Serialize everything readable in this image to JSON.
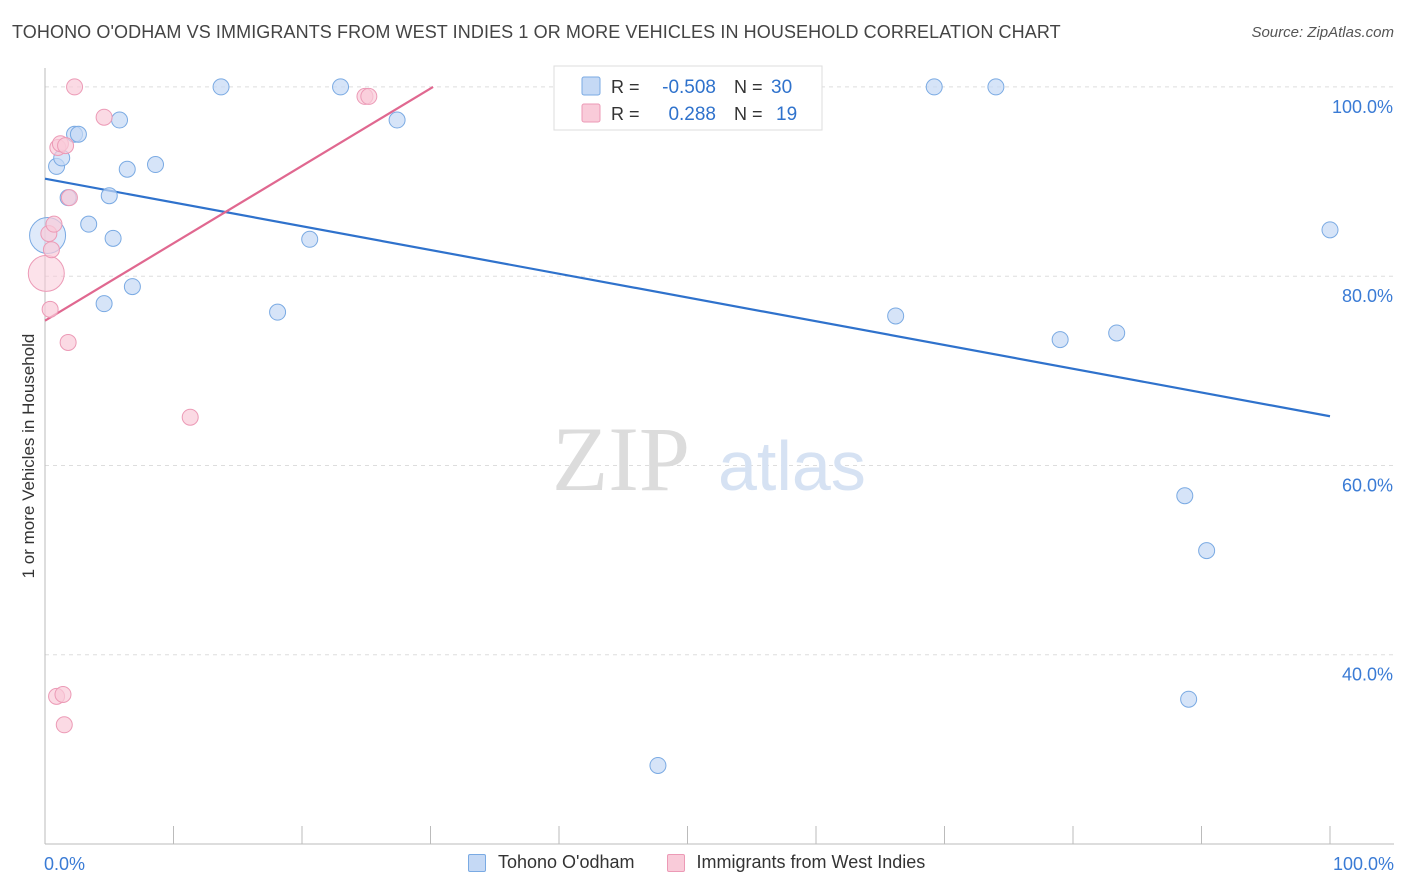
{
  "title": "TOHONO O'ODHAM VS IMMIGRANTS FROM WEST INDIES 1 OR MORE VEHICLES IN HOUSEHOLD CORRELATION CHART",
  "source": "Source: ZipAtlas.com",
  "watermark": {
    "zip": "ZIP",
    "atlas": "atlas"
  },
  "colors": {
    "blue_fill": "#c5d9f5",
    "blue_stroke": "#7aaae3",
    "blue_line": "#2f72cc",
    "pink_fill": "#f9cbd9",
    "pink_stroke": "#ec9ab6",
    "pink_line": "#e06890",
    "axis_label": "#3a7bd5",
    "grid": "#dddddd"
  },
  "legend_box": {
    "rows": [
      {
        "r_label": "R =",
        "r_value": "-0.508",
        "n_label": "N =",
        "n_value": "30"
      },
      {
        "r_label": "R =",
        "r_value": "0.288",
        "n_label": "N =",
        "n_value": "19"
      }
    ]
  },
  "chart_data": {
    "type": "scatter",
    "ylabel": "1 or more Vehicles in Household",
    "xlabel": "",
    "xlim": [
      0,
      100
    ],
    "ylim": [
      20,
      102
    ],
    "x_tick_labels": [
      "0.0%",
      "100.0%"
    ],
    "y_ticks": [
      {
        "value": 100,
        "label": "100.0%"
      },
      {
        "value": 80,
        "label": "80.0%"
      },
      {
        "value": 60,
        "label": "60.0%"
      },
      {
        "value": 40,
        "label": "40.0%"
      }
    ],
    "series": [
      {
        "name": "Tohono O'odham",
        "color": "blue",
        "trend": {
          "x": [
            0,
            100
          ],
          "y": [
            90.3,
            65.2
          ]
        },
        "points": [
          {
            "x": 0.2,
            "y": 84.3,
            "big": true
          },
          {
            "x": 0.9,
            "y": 91.6
          },
          {
            "x": 1.3,
            "y": 92.5
          },
          {
            "x": 1.8,
            "y": 88.3
          },
          {
            "x": 2.3,
            "y": 95.0
          },
          {
            "x": 2.6,
            "y": 95.0
          },
          {
            "x": 3.4,
            "y": 85.5
          },
          {
            "x": 4.6,
            "y": 77.1
          },
          {
            "x": 5.0,
            "y": 88.5
          },
          {
            "x": 5.3,
            "y": 84.0
          },
          {
            "x": 5.8,
            "y": 96.5
          },
          {
            "x": 6.4,
            "y": 91.3
          },
          {
            "x": 6.8,
            "y": 78.9
          },
          {
            "x": 8.6,
            "y": 91.8
          },
          {
            "x": 13.7,
            "y": 100.0
          },
          {
            "x": 18.1,
            "y": 76.2
          },
          {
            "x": 20.6,
            "y": 83.9
          },
          {
            "x": 23.0,
            "y": 100.0
          },
          {
            "x": 27.4,
            "y": 96.5
          },
          {
            "x": 47.7,
            "y": 28.3
          },
          {
            "x": 66.2,
            "y": 75.8
          },
          {
            "x": 69.2,
            "y": 100.0
          },
          {
            "x": 74.0,
            "y": 100.0
          },
          {
            "x": 79.0,
            "y": 73.3
          },
          {
            "x": 83.4,
            "y": 74.0
          },
          {
            "x": 88.7,
            "y": 56.8
          },
          {
            "x": 89.0,
            "y": 35.3
          },
          {
            "x": 90.4,
            "y": 51.0
          },
          {
            "x": 100.0,
            "y": 84.9
          }
        ]
      },
      {
        "name": "Immigrants from West Indies",
        "color": "pink",
        "trend": {
          "x": [
            0,
            30.2
          ],
          "y": [
            75.3,
            100.0
          ]
        },
        "points": [
          {
            "x": 0.1,
            "y": 80.3,
            "big": true
          },
          {
            "x": 0.3,
            "y": 84.5
          },
          {
            "x": 0.4,
            "y": 76.5
          },
          {
            "x": 0.5,
            "y": 82.8
          },
          {
            "x": 0.7,
            "y": 85.5
          },
          {
            "x": 0.9,
            "y": 35.6
          },
          {
            "x": 1.0,
            "y": 93.6
          },
          {
            "x": 1.2,
            "y": 94.0
          },
          {
            "x": 1.4,
            "y": 35.8
          },
          {
            "x": 1.5,
            "y": 32.6
          },
          {
            "x": 1.6,
            "y": 93.8
          },
          {
            "x": 1.8,
            "y": 73.0
          },
          {
            "x": 1.9,
            "y": 88.3
          },
          {
            "x": 2.3,
            "y": 100.0
          },
          {
            "x": 4.6,
            "y": 96.8
          },
          {
            "x": 11.3,
            "y": 65.1
          },
          {
            "x": 24.9,
            "y": 99.0
          },
          {
            "x": 25.2,
            "y": 99.0
          }
        ]
      }
    ]
  }
}
